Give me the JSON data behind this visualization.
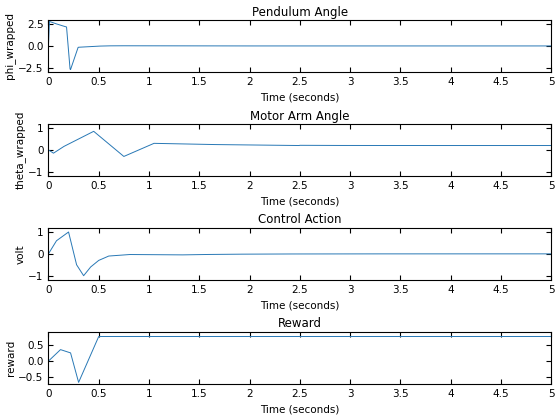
{
  "title1": "Pendulum Angle",
  "title2": "Motor Arm Angle",
  "title3": "Control Action",
  "title4": "Reward",
  "ylabel1": "phi_wrapped",
  "ylabel2": "theta_wrapped",
  "ylabel3": "volt",
  "ylabel4": "reward",
  "xlabel": "Time (seconds)",
  "xlim": [
    0,
    5
  ],
  "ylim1": [
    -3.0,
    3.0
  ],
  "ylim2": [
    -1.2,
    1.2
  ],
  "ylim3": [
    -1.2,
    1.2
  ],
  "ylim4": [
    -0.7,
    0.9
  ],
  "line_color": "#2878b5",
  "bg_color": "#ffffff",
  "figsize": [
    5.6,
    4.2
  ],
  "dpi": 100
}
